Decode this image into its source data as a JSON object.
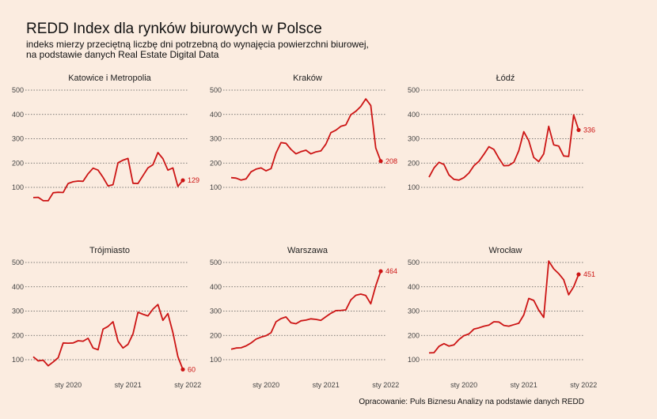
{
  "title": "REDD Index dla rynków biurowych w Polsce",
  "subtitle": "indeks mierzy przeciętną liczbę dni potrzebną do wynajęcia powierzchni biurowej,\nna podstawie danych Real Estate Digital Data",
  "caption": "Opracowanie: Puls Biznesu Analizy na podstawie danych REDD",
  "colors": {
    "line": "#cc1414",
    "grid": "#555555",
    "background": "#fbece0"
  },
  "chart_data": {
    "type": "line",
    "x_tick_labels": [
      "sty 2020",
      "sty 2021",
      "sty 2022"
    ],
    "x_tick_positions": [
      7,
      19,
      31
    ],
    "y_ticks": [
      100,
      200,
      300,
      400,
      500
    ],
    "ylim": [
      40,
      510
    ],
    "grid": "horizontal dotted",
    "panels": [
      {
        "name": "Katowice i Metropolia",
        "last_label": "129",
        "values": [
          58,
          59,
          45,
          45,
          78,
          80,
          79,
          116,
          123,
          126,
          125,
          156,
          179,
          171,
          141,
          106,
          111,
          201,
          212,
          219,
          117,
          116,
          148,
          180,
          193,
          243,
          218,
          171,
          180,
          104,
          129
        ]
      },
      {
        "name": "Kraków",
        "last_label": "208",
        "values": [
          140,
          138,
          130,
          135,
          164,
          175,
          180,
          168,
          177,
          241,
          284,
          281,
          256,
          238,
          247,
          253,
          238,
          246,
          250,
          278,
          325,
          335,
          351,
          357,
          399,
          413,
          433,
          464,
          437,
          262,
          208
        ]
      },
      {
        "name": "Łódź",
        "last_label": "336",
        "values": [
          142,
          180,
          203,
          194,
          151,
          133,
          130,
          140,
          159,
          189,
          207,
          236,
          267,
          256,
          220,
          189,
          190,
          203,
          251,
          329,
          292,
          223,
          206,
          238,
          351,
          275,
          270,
          229,
          227,
          398,
          336
        ]
      },
      {
        "name": "Trójmiasto",
        "last_label": "60",
        "values": [
          112,
          95,
          98,
          75,
          91,
          108,
          169,
          168,
          169,
          178,
          176,
          188,
          148,
          141,
          226,
          237,
          256,
          176,
          148,
          163,
          206,
          295,
          287,
          280,
          308,
          327,
          262,
          290,
          212,
          113,
          60
        ]
      },
      {
        "name": "Warszawa",
        "last_label": "464",
        "values": [
          143,
          148,
          149,
          157,
          169,
          185,
          193,
          199,
          211,
          256,
          269,
          276,
          252,
          248,
          260,
          263,
          268,
          266,
          262,
          277,
          291,
          302,
          303,
          305,
          346,
          365,
          370,
          364,
          330,
          404,
          464
        ]
      },
      {
        "name": "Wrocław",
        "last_label": "451",
        "values": [
          128,
          129,
          155,
          166,
          156,
          161,
          183,
          199,
          206,
          226,
          231,
          238,
          242,
          256,
          255,
          241,
          238,
          244,
          250,
          284,
          352,
          344,
          304,
          274,
          506,
          474,
          454,
          429,
          367,
          400,
          451
        ]
      }
    ]
  }
}
